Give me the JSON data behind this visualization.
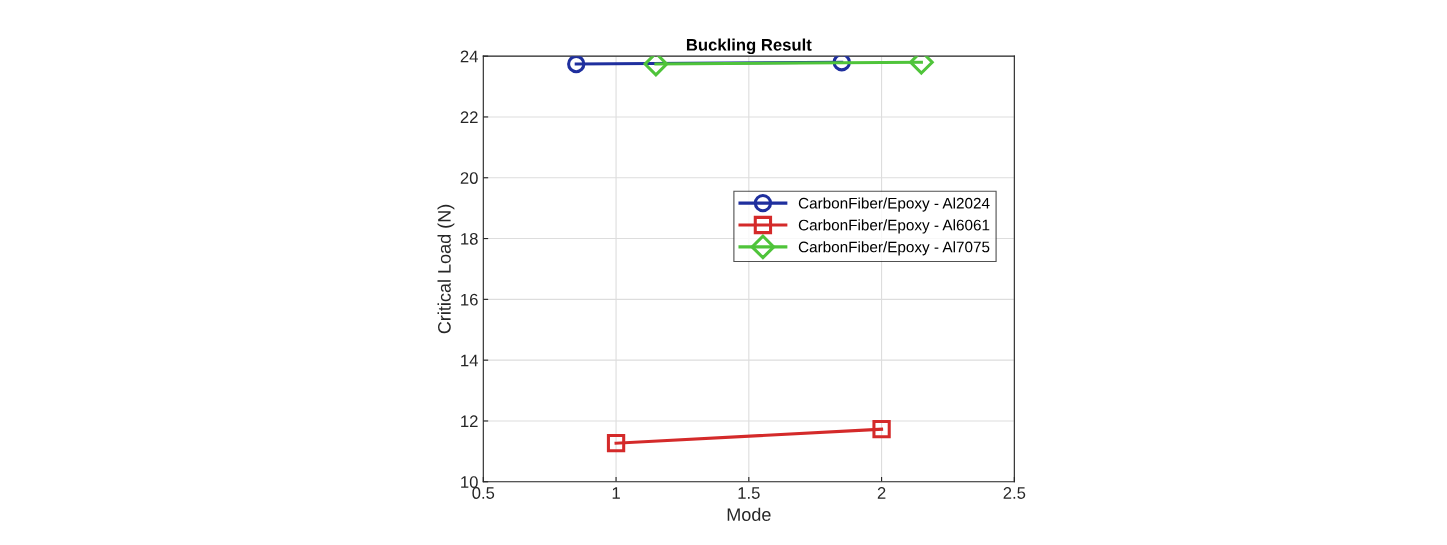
{
  "chart_data": {
    "type": "line",
    "title": "Buckling Result",
    "xlabel": "Mode",
    "ylabel": "Critical Load (N)",
    "xlim": [
      0.5,
      2.5
    ],
    "xticks": [
      0.5,
      1,
      1.5,
      2,
      2.5
    ],
    "ylim": [
      10,
      24
    ],
    "yticks": [
      10,
      12,
      14,
      16,
      18,
      20,
      22,
      24
    ],
    "grid": true,
    "legend": "right",
    "series": [
      {
        "name": "CarbonFiber/Epoxy - Al2024",
        "color": "#1f2f9e",
        "marker": "circle",
        "x": [
          0.85,
          1.85
        ],
        "values": [
          23.74,
          23.8
        ]
      },
      {
        "name": "CarbonFiber/Epoxy - Al6061",
        "color": "#d42a2a",
        "marker": "square",
        "x": [
          1,
          2
        ],
        "values": [
          11.27,
          11.73
        ]
      },
      {
        "name": "CarbonFiber/Epoxy - Al7075",
        "color": "#4fc43a",
        "marker": "diamond",
        "x": [
          1.15,
          2.15
        ],
        "values": [
          23.74,
          23.8
        ]
      }
    ]
  }
}
